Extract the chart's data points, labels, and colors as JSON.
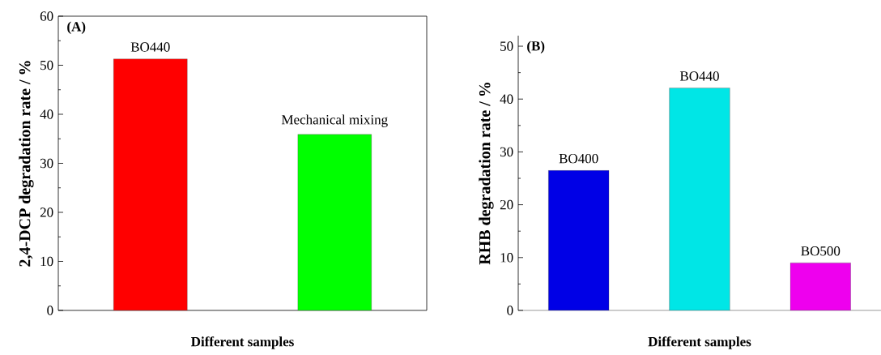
{
  "chart_data": [
    {
      "type": "bar",
      "annotations": [
        "(A)"
      ],
      "categories": [
        "BO440",
        "Mechanical mixing"
      ],
      "values": [
        51.3,
        35.9
      ],
      "colors": [
        "#ff0000",
        "#00ff00"
      ],
      "xlabel": "Different samples",
      "ylabel": "2,4-DCP degradation rate / %",
      "ylim": [
        0,
        60
      ],
      "yticks": [
        0,
        10,
        20,
        30,
        40,
        50,
        60
      ]
    },
    {
      "type": "bar",
      "annotations": [
        "(B)"
      ],
      "categories": [
        "BO400",
        "BO440",
        "BO500"
      ],
      "values": [
        26.5,
        42.1,
        9.0
      ],
      "colors": [
        "#0000e6",
        "#00e6e6",
        "#ee00ee"
      ],
      "xlabel": "Different samples",
      "ylabel": "RHB degradation rate / %",
      "ylim": [
        0,
        52
      ],
      "yticks": [
        0,
        10,
        20,
        30,
        40,
        50
      ]
    }
  ]
}
